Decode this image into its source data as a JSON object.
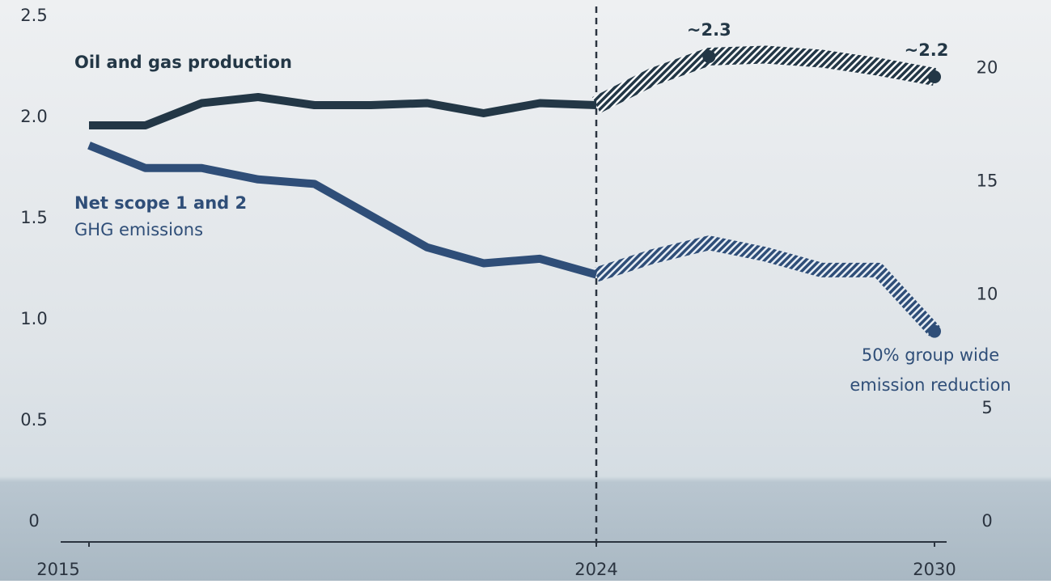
{
  "chart_data": {
    "type": "line",
    "x": [
      2015,
      2016,
      2017,
      2018,
      2019,
      2020,
      2021,
      2022,
      2023,
      2024,
      2025,
      2026,
      2027,
      2028,
      2029,
      2030
    ],
    "xlim": [
      2015,
      2030
    ],
    "xticks": [
      2015,
      2024,
      2030
    ],
    "ylim": [
      0,
      2.5
    ],
    "yticks": [
      0,
      0.5,
      {
        "value": 1,
        "label": "1.0"
      },
      1.5,
      {
        "value": 2,
        "label": "2.0"
      },
      2.5
    ],
    "y2lim": [
      0,
      22.3
    ],
    "y2ticks": [
      0,
      5,
      10,
      15,
      20
    ],
    "divider_x": 2024,
    "series": [
      {
        "name": "Oil and gas production",
        "color": "#233746",
        "axis": "y",
        "values": [
          1.96,
          1.96,
          2.07,
          2.1,
          2.06,
          2.06,
          2.07,
          2.02,
          2.07,
          2.06,
          null,
          null,
          null,
          null,
          null,
          null
        ],
        "projected_values": [
          null,
          null,
          null,
          null,
          null,
          null,
          null,
          null,
          null,
          2.06,
          2.2,
          2.3,
          2.31,
          2.29,
          2.25,
          2.2
        ],
        "markers": [
          {
            "x": 2026,
            "value": 2.3,
            "label": "~2.3"
          },
          {
            "x": 2030,
            "value": 2.2,
            "label": "~2.2"
          }
        ]
      },
      {
        "name": "Net scope 1 and 2",
        "subtitle": "GHG emissions",
        "color": "#2f4e78",
        "axis": "y2",
        "values": [
          16.6,
          15.6,
          15.6,
          15.1,
          14.9,
          13.5,
          12.1,
          11.4,
          11.6,
          10.9,
          null,
          null,
          null,
          null,
          null,
          null
        ],
        "projected_values": [
          null,
          null,
          null,
          null,
          null,
          null,
          null,
          null,
          null,
          10.9,
          11.7,
          12.3,
          11.8,
          11.1,
          11.1,
          8.4
        ],
        "markers": [
          {
            "x": 2030,
            "value": 8.4
          }
        ],
        "annotation": [
          "50% group wide",
          "emission reduction"
        ]
      }
    ]
  }
}
